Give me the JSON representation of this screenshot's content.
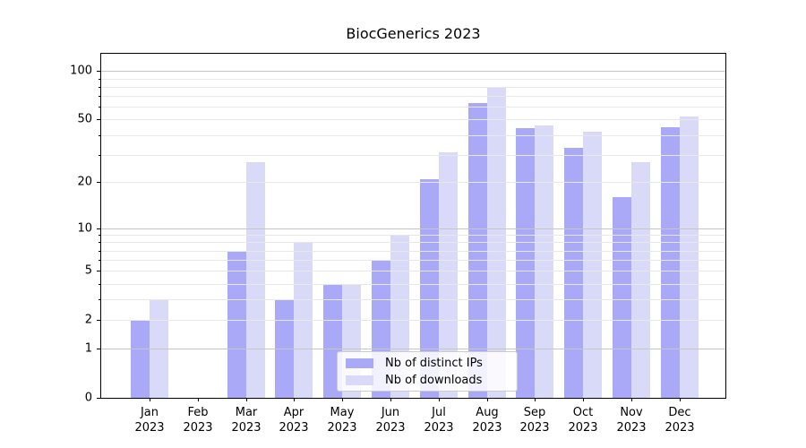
{
  "chart_data": {
    "type": "bar",
    "title": "BiocGenerics 2023",
    "categories": [
      "Jan",
      "Feb",
      "Mar",
      "Apr",
      "May",
      "Jun",
      "Jul",
      "Aug",
      "Sep",
      "Oct",
      "Nov",
      "Dec"
    ],
    "year_label": "2023",
    "series": [
      {
        "name": "Nb of distinct IPs",
        "color": "#a9a9f7",
        "values": [
          2,
          0,
          7,
          3,
          4,
          6,
          21,
          63,
          44,
          33,
          16,
          45
        ]
      },
      {
        "name": "Nb of downloads",
        "color": "#d9d9f8",
        "values": [
          3,
          0,
          27,
          8,
          4,
          9,
          31,
          80,
          46,
          42,
          27,
          52
        ]
      }
    ],
    "xlabel": "",
    "ylabel": "",
    "yscale": "log1p",
    "ylim": [
      0,
      128
    ],
    "yticks": [
      0,
      1,
      2,
      5,
      10,
      20,
      50,
      100
    ],
    "minor_gridlines": [
      2,
      3,
      4,
      5,
      6,
      7,
      8,
      9,
      20,
      30,
      40,
      50,
      60,
      70,
      80,
      90
    ],
    "major_gridlines": [
      1,
      10,
      100
    ],
    "grid": true,
    "legend_position": "lower center",
    "colors": {
      "grid_minor": "#e8e8e8",
      "grid_major": "#c6c6c6",
      "axis": "#000000",
      "text": "#000000",
      "background": "#ffffff"
    }
  }
}
